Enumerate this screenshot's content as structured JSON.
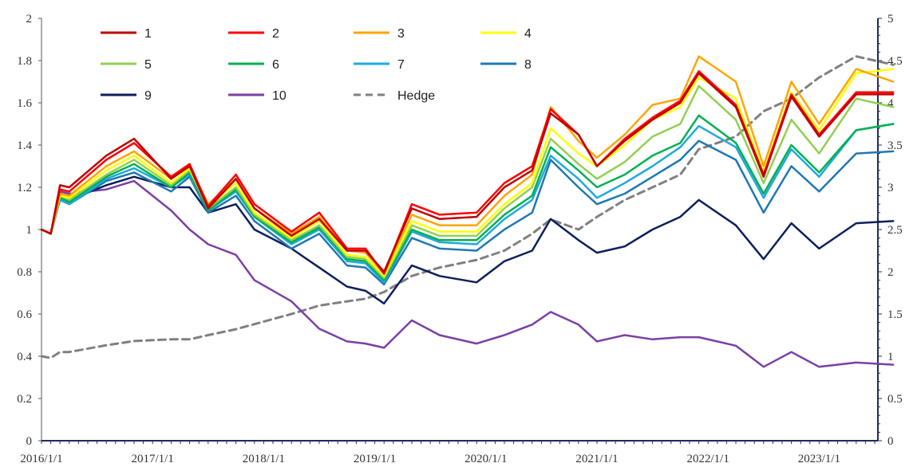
{
  "chart_data": {
    "type": "line",
    "x_start": "2016-01",
    "x_end": "2023-09",
    "x_ticks": [
      "2016/1/1",
      "2017/1/1",
      "2018/1/1",
      "2019/1/1",
      "2020/1/1",
      "2021/1/1",
      "2022/1/1",
      "2023/1/1"
    ],
    "x_tick_dates": [
      "2016-01",
      "2017-01",
      "2018-01",
      "2019-01",
      "2020-01",
      "2021-01",
      "2022-01",
      "2023-01"
    ],
    "ylim_left": [
      0,
      2
    ],
    "y_ticks_left": [
      "0",
      "0.2",
      "0.4",
      "0.6",
      "0.8",
      "1",
      "1.2",
      "1.4",
      "1.6",
      "1.8",
      "2"
    ],
    "ylim_right": [
      0,
      5
    ],
    "y_ticks_right": [
      "0",
      "0.5",
      "1",
      "1.5",
      "2",
      "2.5",
      "3",
      "3.5",
      "4",
      "4.5",
      "5"
    ],
    "grid": false,
    "legend_position": "top",
    "series_anchor_dates": [
      "2016-01",
      "2016-02",
      "2016-03",
      "2016-04",
      "2016-08",
      "2016-11",
      "2017-03",
      "2017-05",
      "2017-07",
      "2017-10",
      "2017-12",
      "2018-04",
      "2018-07",
      "2018-10",
      "2018-12",
      "2019-02",
      "2019-05",
      "2019-08",
      "2019-12",
      "2020-03",
      "2020-06",
      "2020-08",
      "2020-11",
      "2021-01",
      "2021-04",
      "2021-07",
      "2021-10",
      "2021-12",
      "2022-04",
      "2022-07",
      "2022-10",
      "2023-01",
      "2023-05",
      "2023-09"
    ],
    "series": [
      {
        "name": "1",
        "color": "#c00000",
        "dashed": false,
        "axis": "left",
        "values": [
          1.0,
          0.98,
          1.21,
          1.2,
          1.35,
          1.43,
          1.24,
          1.3,
          1.1,
          1.24,
          1.1,
          0.97,
          1.05,
          0.9,
          0.9,
          0.8,
          1.1,
          1.05,
          1.06,
          1.2,
          1.28,
          1.55,
          1.45,
          1.3,
          1.42,
          1.52,
          1.6,
          1.74,
          1.58,
          1.25,
          1.63,
          1.44,
          1.64,
          1.64
        ]
      },
      {
        "name": "2",
        "color": "#ff0000",
        "dashed": false,
        "axis": "left",
        "values": [
          1.0,
          0.98,
          1.19,
          1.18,
          1.33,
          1.41,
          1.25,
          1.31,
          1.11,
          1.26,
          1.12,
          0.99,
          1.08,
          0.91,
          0.91,
          0.79,
          1.12,
          1.07,
          1.08,
          1.22,
          1.3,
          1.57,
          1.45,
          1.3,
          1.43,
          1.53,
          1.61,
          1.75,
          1.59,
          1.26,
          1.64,
          1.45,
          1.65,
          1.65
        ]
      },
      {
        "name": "3",
        "color": "#ffa500",
        "dashed": false,
        "axis": "left",
        "values": [
          1.0,
          0.98,
          1.17,
          1.16,
          1.3,
          1.37,
          1.24,
          1.3,
          1.12,
          1.24,
          1.1,
          0.98,
          1.06,
          0.9,
          0.89,
          0.79,
          1.07,
          1.02,
          1.02,
          1.16,
          1.26,
          1.58,
          1.42,
          1.34,
          1.45,
          1.59,
          1.62,
          1.82,
          1.7,
          1.3,
          1.7,
          1.5,
          1.76,
          1.7
        ]
      },
      {
        "name": "4",
        "color": "#ffff00",
        "dashed": false,
        "axis": "left",
        "values": [
          1.0,
          0.98,
          1.16,
          1.15,
          1.28,
          1.35,
          1.22,
          1.29,
          1.11,
          1.22,
          1.08,
          0.96,
          1.04,
          0.88,
          0.87,
          0.78,
          1.04,
          0.99,
          0.99,
          1.12,
          1.22,
          1.48,
          1.36,
          1.3,
          1.4,
          1.52,
          1.58,
          1.72,
          1.62,
          1.27,
          1.65,
          1.47,
          1.74,
          1.76
        ]
      },
      {
        "name": "5",
        "color": "#92d050",
        "dashed": false,
        "axis": "left",
        "values": [
          1.0,
          0.98,
          1.16,
          1.14,
          1.26,
          1.33,
          1.21,
          1.28,
          1.1,
          1.2,
          1.07,
          0.95,
          1.02,
          0.87,
          0.86,
          0.77,
          1.02,
          0.97,
          0.97,
          1.1,
          1.2,
          1.43,
          1.31,
          1.24,
          1.32,
          1.44,
          1.5,
          1.68,
          1.52,
          1.22,
          1.52,
          1.36,
          1.62,
          1.58
        ]
      },
      {
        "name": "6",
        "color": "#00b050",
        "dashed": false,
        "axis": "left",
        "values": [
          1.0,
          0.98,
          1.15,
          1.13,
          1.25,
          1.31,
          1.2,
          1.27,
          1.09,
          1.19,
          1.06,
          0.94,
          1.01,
          0.86,
          0.85,
          0.76,
          1.0,
          0.95,
          0.95,
          1.07,
          1.16,
          1.39,
          1.28,
          1.2,
          1.26,
          1.35,
          1.41,
          1.54,
          1.41,
          1.17,
          1.4,
          1.27,
          1.47,
          1.5
        ]
      },
      {
        "name": "7",
        "color": "#1fa9e0",
        "dashed": false,
        "axis": "left",
        "values": [
          1.0,
          0.98,
          1.14,
          1.12,
          1.24,
          1.29,
          1.2,
          1.26,
          1.09,
          1.18,
          1.06,
          0.93,
          1.0,
          0.85,
          0.84,
          0.75,
          0.99,
          0.94,
          0.93,
          1.05,
          1.14,
          1.35,
          1.24,
          1.15,
          1.22,
          1.3,
          1.39,
          1.49,
          1.39,
          1.15,
          1.38,
          1.25,
          1.47,
          1.5
        ]
      },
      {
        "name": "8",
        "color": "#1f78b4",
        "dashed": false,
        "axis": "left",
        "values": [
          1.0,
          0.98,
          1.14,
          1.12,
          1.23,
          1.27,
          1.18,
          1.25,
          1.08,
          1.16,
          1.04,
          0.91,
          0.98,
          0.83,
          0.82,
          0.74,
          0.96,
          0.91,
          0.9,
          1.0,
          1.08,
          1.33,
          1.2,
          1.12,
          1.17,
          1.25,
          1.33,
          1.42,
          1.33,
          1.08,
          1.3,
          1.18,
          1.36,
          1.37
        ]
      },
      {
        "name": "9",
        "color": "#0d1f5c",
        "dashed": false,
        "axis": "left",
        "values": [
          1.0,
          0.98,
          1.15,
          1.14,
          1.21,
          1.25,
          1.2,
          1.2,
          1.08,
          1.12,
          1.0,
          0.91,
          0.82,
          0.73,
          0.71,
          0.65,
          0.83,
          0.78,
          0.75,
          0.85,
          0.9,
          1.05,
          0.95,
          0.89,
          0.92,
          1.0,
          1.06,
          1.14,
          1.02,
          0.86,
          1.03,
          0.91,
          1.03,
          1.04
        ]
      },
      {
        "name": "10",
        "color": "#7b3fa6",
        "dashed": false,
        "axis": "left",
        "values": [
          1.0,
          0.98,
          1.18,
          1.17,
          1.19,
          1.23,
          1.09,
          1.0,
          0.93,
          0.88,
          0.76,
          0.66,
          0.53,
          0.47,
          0.46,
          0.44,
          0.57,
          0.5,
          0.46,
          0.5,
          0.55,
          0.61,
          0.55,
          0.47,
          0.5,
          0.48,
          0.49,
          0.49,
          0.45,
          0.35,
          0.42,
          0.35,
          0.37,
          0.36
        ]
      },
      {
        "name": "Hedge",
        "color": "#808080",
        "dashed": true,
        "axis": "right",
        "values": [
          1.0,
          0.98,
          1.05,
          1.05,
          1.13,
          1.18,
          1.2,
          1.2,
          1.25,
          1.32,
          1.38,
          1.5,
          1.6,
          1.65,
          1.68,
          1.76,
          1.95,
          2.05,
          2.14,
          2.25,
          2.45,
          2.62,
          2.5,
          2.65,
          2.85,
          3.0,
          3.15,
          3.45,
          3.6,
          3.9,
          4.05,
          4.3,
          4.55,
          4.45
        ]
      }
    ]
  }
}
